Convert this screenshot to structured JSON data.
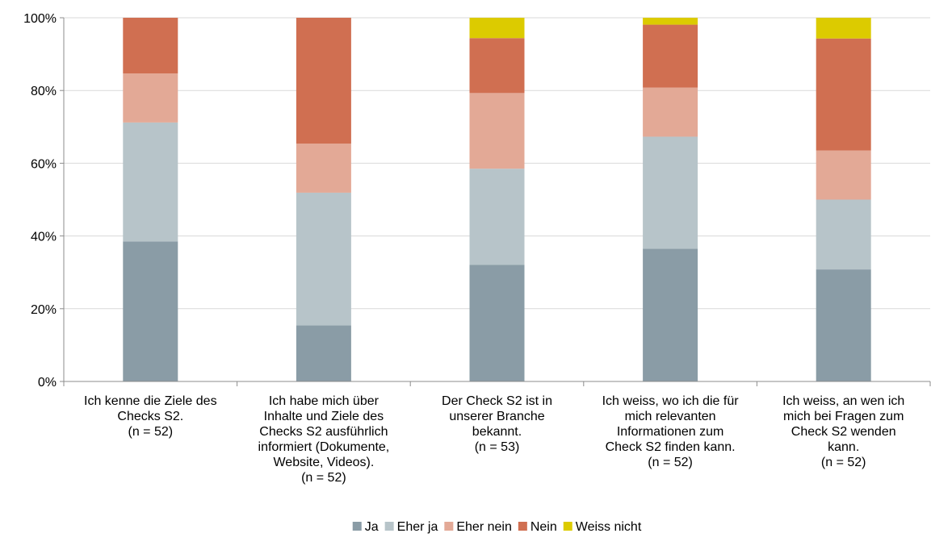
{
  "chart_data": {
    "type": "bar",
    "stacked": true,
    "categories": [
      [
        "Ich kenne die Ziele des",
        "Checks S2.",
        "(n = 52)"
      ],
      [
        "Ich habe mich über",
        "Inhalte und Ziele des",
        "Checks S2 ausführlich",
        "informiert (Dokumente,",
        "Website, Videos).",
        "(n = 52)"
      ],
      [
        "Der Check S2 ist in",
        "unserer Branche",
        "bekannt.",
        "(n = 53)"
      ],
      [
        "Ich weiss, wo ich die für",
        "mich relevanten",
        "Informationen zum",
        "Check S2 finden kann.",
        "(n = 52)"
      ],
      [
        "Ich weiss, an wen ich",
        "mich bei Fragen zum",
        "Check S2 wenden",
        "kann.",
        "(n = 52)"
      ]
    ],
    "series": [
      {
        "name": "Ja",
        "color": "#8a9ca6",
        "values": [
          38.5,
          15.4,
          32.1,
          36.5,
          30.8
        ]
      },
      {
        "name": "Eher ja",
        "color": "#b7c4c9",
        "values": [
          32.7,
          36.5,
          26.4,
          30.8,
          19.2
        ]
      },
      {
        "name": "Eher nein",
        "color": "#e3a996",
        "values": [
          13.5,
          13.5,
          20.8,
          13.5,
          13.5
        ]
      },
      {
        "name": "Nein",
        "color": "#d06f51",
        "values": [
          15.3,
          34.6,
          15.1,
          17.3,
          30.8
        ]
      },
      {
        "name": "Weiss nicht",
        "color": "#dccb00",
        "values": [
          0,
          0,
          5.6,
          1.9,
          5.7
        ]
      }
    ],
    "y_ticks": [
      "0%",
      "20%",
      "40%",
      "60%",
      "80%",
      "100%"
    ],
    "ylim": [
      0,
      100
    ],
    "grid": true,
    "legend_position": "bottom",
    "title": "",
    "xlabel": "",
    "ylabel": ""
  }
}
